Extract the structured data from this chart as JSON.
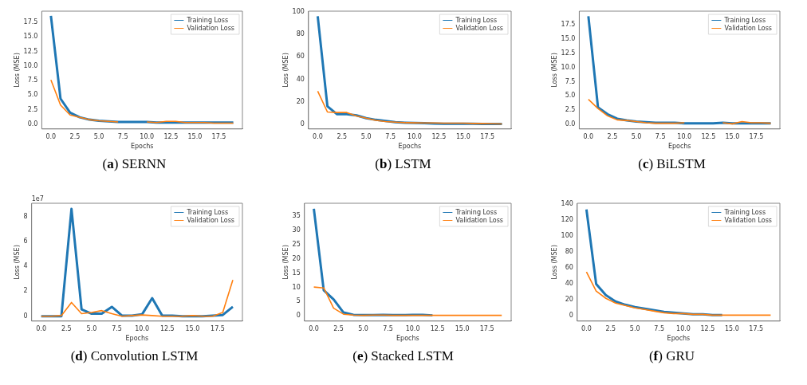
{
  "chart_data": [
    {
      "type": "line",
      "title": "(a) SERNN",
      "xlabel": "Epochs",
      "ylabel": "Loss (MSE)",
      "x": [
        0,
        1,
        2,
        3,
        4,
        5,
        6,
        7,
        8,
        9,
        10,
        11,
        12,
        13,
        14,
        15,
        16,
        17,
        18,
        19
      ],
      "xlim": [
        -0.95,
        19.95
      ],
      "xticks": [
        {
          "value": 0,
          "label": "0.0"
        },
        {
          "value": 2.5,
          "label": "2.5"
        },
        {
          "value": 5,
          "label": "5.0"
        },
        {
          "value": 7.5,
          "label": "7.5"
        },
        {
          "value": 10,
          "label": "10.0"
        },
        {
          "value": 12.5,
          "label": "12.5"
        },
        {
          "value": 15,
          "label": "15.0"
        },
        {
          "value": 17.5,
          "label": "17.5"
        }
      ],
      "ylim": [
        -0.8,
        19.4
      ],
      "yticks": [
        {
          "value": 0,
          "label": "0.0"
        },
        {
          "value": 2.5,
          "label": "2.5"
        },
        {
          "value": 5,
          "label": "5.0"
        },
        {
          "value": 7.5,
          "label": "7.5"
        },
        {
          "value": 10,
          "label": "10.0"
        },
        {
          "value": 12.5,
          "label": "12.5"
        },
        {
          "value": 15,
          "label": "15.0"
        },
        {
          "value": 17.5,
          "label": "17.5"
        }
      ],
      "legend": "top right",
      "grid": false,
      "marker": "none",
      "line_style": "solid",
      "series": [
        {
          "name": "Training Loss",
          "color": "#1f77b4",
          "values": [
            18.6,
            4.4,
            2.0,
            1.2,
            0.8,
            0.6,
            0.5,
            0.4,
            0.4,
            0.4,
            0.4,
            0.3,
            0.3,
            0.3,
            0.3,
            0.3,
            0.3,
            0.3,
            0.3,
            0.3
          ]
        },
        {
          "name": "Validation Loss",
          "color": "#ff7f0e",
          "values": [
            7.6,
            3.3,
            1.6,
            1.2,
            0.8,
            0.6,
            0.5,
            0.4,
            null,
            null,
            0.4,
            0.3,
            0.5,
            0.5,
            0.3,
            0.3,
            0.3,
            0.2,
            0.2,
            0.2
          ]
        }
      ]
    },
    {
      "type": "line",
      "title": "(b) LSTM",
      "xlabel": "Epochs",
      "ylabel": "Loss (MSE)",
      "x": [
        0,
        1,
        2,
        3,
        4,
        5,
        6,
        7,
        8,
        9,
        10,
        11,
        12,
        13,
        14,
        15,
        16,
        17,
        18,
        19
      ],
      "xlim": [
        -0.95,
        19.95
      ],
      "xticks": [
        {
          "value": 0,
          "label": "0.0"
        },
        {
          "value": 2.5,
          "label": "2.5"
        },
        {
          "value": 5,
          "label": "5.0"
        },
        {
          "value": 7.5,
          "label": "7.5"
        },
        {
          "value": 10,
          "label": "10.0"
        },
        {
          "value": 12.5,
          "label": "12.5"
        },
        {
          "value": 15,
          "label": "15.0"
        },
        {
          "value": 17.5,
          "label": "17.5"
        }
      ],
      "ylim": [
        -4.1,
        100.5
      ],
      "yticks": [
        0,
        20,
        40,
        60,
        80,
        100
      ],
      "legend": "top right",
      "grid": false,
      "marker": "none",
      "line_style": "solid",
      "series": [
        {
          "name": "Training Loss",
          "color": "#1f77b4",
          "values": [
            96,
            16,
            9,
            9,
            8,
            5.5,
            4,
            3,
            2,
            1.5,
            1.2,
            1,
            0.8,
            0.6,
            0.6,
            0.6,
            0.5,
            0.4,
            0.4,
            0.4
          ]
        },
        {
          "name": "Validation Loss",
          "color": "#ff7f0e",
          "values": [
            29.5,
            11,
            10.5,
            10.5,
            7.5,
            5.5,
            3.5,
            2.5,
            2,
            1.5,
            1.3,
            1.2,
            1.2,
            1.1,
            1.1,
            1.1,
            0.8,
            0.6,
            0.5,
            0.4
          ]
        }
      ]
    },
    {
      "type": "line",
      "title": "(c) BiLSTM",
      "xlabel": "Epochs",
      "ylabel": "Loss (MSE)",
      "x": [
        0,
        1,
        2,
        3,
        4,
        5,
        6,
        7,
        8,
        9,
        10,
        11,
        12,
        13,
        14,
        15,
        16,
        17,
        18,
        19
      ],
      "xlim": [
        -0.95,
        19.95
      ],
      "xticks": [
        {
          "value": 0,
          "label": "0.0"
        },
        {
          "value": 2.5,
          "label": "2.5"
        },
        {
          "value": 5,
          "label": "5.0"
        },
        {
          "value": 7.5,
          "label": "7.5"
        },
        {
          "value": 10,
          "label": "10.0"
        },
        {
          "value": 12.5,
          "label": "12.5"
        },
        {
          "value": 15,
          "label": "15.0"
        },
        {
          "value": 17.5,
          "label": "17.5"
        }
      ],
      "ylim": [
        -0.8,
        19.9
      ],
      "yticks": [
        {
          "value": 0,
          "label": "0.0"
        },
        {
          "value": 2.5,
          "label": "2.5"
        },
        {
          "value": 5,
          "label": "5.0"
        },
        {
          "value": 7.5,
          "label": "7.5"
        },
        {
          "value": 10,
          "label": "10.0"
        },
        {
          "value": 12.5,
          "label": "12.5"
        },
        {
          "value": 15,
          "label": "15.0"
        },
        {
          "value": 17.5,
          "label": "17.5"
        }
      ],
      "legend": "top right",
      "grid": false,
      "marker": "none",
      "line_style": "solid",
      "series": [
        {
          "name": "Training Loss",
          "color": "#1f77b4",
          "values": [
            19.0,
            3.0,
            1.8,
            1.0,
            0.7,
            0.5,
            0.4,
            0.3,
            0.3,
            0.3,
            0.2,
            0.2,
            0.2,
            0.2,
            0.3,
            0.2,
            0.2,
            0.2,
            0.2,
            0.2
          ]
        },
        {
          "name": "Validation Loss",
          "color": "#ff7f0e",
          "values": [
            4.4,
            2.8,
            1.5,
            0.8,
            0.7,
            0.5,
            0.3,
            0.2,
            0.2,
            0.2,
            0.3,
            null,
            null,
            null,
            0.3,
            0.1,
            0.5,
            0.3,
            0.3,
            0.2
          ]
        }
      ]
    },
    {
      "type": "line",
      "title": "(d) Convolution LSTM",
      "xlabel": "Epochs",
      "ylabel": "Loss (MSE)",
      "annotations": [
        "1e7"
      ],
      "x": [
        0,
        1,
        2,
        3,
        4,
        5,
        6,
        7,
        8,
        9,
        10,
        11,
        12,
        13,
        14,
        15,
        16,
        17,
        18,
        19
      ],
      "xlim": [
        -0.95,
        19.95
      ],
      "xticks": [
        {
          "value": 0,
          "label": "0.0"
        },
        {
          "value": 2.5,
          "label": "2.5"
        },
        {
          "value": 5,
          "label": "5.0"
        },
        {
          "value": 7.5,
          "label": "7.5"
        },
        {
          "value": 10,
          "label": "10.0"
        },
        {
          "value": 12.5,
          "label": "12.5"
        },
        {
          "value": 15,
          "label": "15.0"
        },
        {
          "value": 17.5,
          "label": "17.5"
        }
      ],
      "ylim": [
        -0.39,
        9.05
      ],
      "yticks": [
        0,
        2,
        4,
        6,
        8
      ],
      "legend": "top right",
      "grid": false,
      "marker": "none",
      "line_style": "solid",
      "series": [
        {
          "name": "Training Loss",
          "color": "#1f77b4",
          "values": [
            0,
            0,
            0,
            8.6,
            0.55,
            0.2,
            0.2,
            0.75,
            0.05,
            0.05,
            0.15,
            1.45,
            0.05,
            0.05,
            0,
            0,
            0,
            0.05,
            0.1,
            0.75
          ]
        },
        {
          "name": "Validation Loss",
          "color": "#ff7f0e",
          "values": [
            0,
            0,
            0.05,
            1.1,
            0.2,
            0.3,
            0.45,
            0.2,
            0,
            0.05,
            0.1,
            0.05,
            0,
            0,
            0,
            0.05,
            0,
            0,
            0.3,
            2.9
          ]
        }
      ]
    },
    {
      "type": "line",
      "title": "(e) Stacked LSTM",
      "xlabel": "Epochs",
      "ylabel": "Loss (MSE)",
      "x": [
        0,
        1,
        2,
        3,
        4,
        5,
        6,
        7,
        8,
        9,
        10,
        11,
        12,
        13,
        14,
        15,
        16,
        17,
        18,
        19
      ],
      "xlim": [
        -0.95,
        19.95
      ],
      "xticks": [
        {
          "value": 0,
          "label": "0.0"
        },
        {
          "value": 2.5,
          "label": "2.5"
        },
        {
          "value": 5,
          "label": "5.0"
        },
        {
          "value": 7.5,
          "label": "7.5"
        },
        {
          "value": 10,
          "label": "10.0"
        },
        {
          "value": 12.5,
          "label": "12.5"
        },
        {
          "value": 15,
          "label": "15.0"
        },
        {
          "value": 17.5,
          "label": "17.5"
        }
      ],
      "ylim": [
        -1.8,
        39.4
      ],
      "yticks": [
        0,
        5,
        10,
        15,
        20,
        25,
        30,
        35
      ],
      "legend": "top right",
      "grid": false,
      "marker": "none",
      "line_style": "solid",
      "series": [
        {
          "name": "Training Loss",
          "color": "#1f77b4",
          "values": [
            37.5,
            9,
            5.8,
            1.2,
            0.4,
            0.3,
            0.3,
            0.4,
            0.3,
            0.3,
            0.4,
            0.4,
            0.2,
            null,
            null,
            null,
            null,
            null,
            null,
            null
          ]
        },
        {
          "name": "Validation Loss",
          "color": "#ff7f0e",
          "values": [
            10.1,
            9.8,
            2.7,
            0.6,
            0.3,
            0.2,
            0.3,
            0.3,
            0.2,
            0.2,
            0.2,
            0.2,
            0.2,
            0.2,
            0.2,
            0.2,
            0.2,
            0.2,
            0.2,
            0.2
          ]
        }
      ]
    },
    {
      "type": "line",
      "title": "(f) GRU",
      "xlabel": "Epochs",
      "ylabel": "Loss (MSE)",
      "x": [
        0,
        1,
        2,
        3,
        4,
        5,
        6,
        7,
        8,
        9,
        10,
        11,
        12,
        13,
        14,
        15,
        16,
        17,
        18,
        19
      ],
      "xlim": [
        -0.95,
        19.95
      ],
      "xticks": [
        {
          "value": 0,
          "label": "0.0"
        },
        {
          "value": 2.5,
          "label": "2.5"
        },
        {
          "value": 5,
          "label": "5.0"
        },
        {
          "value": 7.5,
          "label": "7.5"
        },
        {
          "value": 10,
          "label": "10.0"
        },
        {
          "value": 12.5,
          "label": "12.5"
        },
        {
          "value": 15,
          "label": "15.0"
        },
        {
          "value": 17.5,
          "label": "17.5"
        }
      ],
      "ylim": [
        -6.4,
        140.7
      ],
      "yticks": [
        0,
        20,
        40,
        60,
        80,
        100,
        120,
        140
      ],
      "legend": "top right",
      "grid": false,
      "marker": "none",
      "line_style": "solid",
      "series": [
        {
          "name": "Training Loss",
          "color": "#1f77b4",
          "values": [
            133,
            40,
            26,
            18,
            14,
            11,
            9,
            7,
            5,
            4,
            3,
            2,
            2,
            1,
            1,
            null,
            null,
            null,
            null,
            null
          ]
        },
        {
          "name": "Validation Loss",
          "color": "#ff7f0e",
          "values": [
            55,
            31,
            22,
            16,
            13,
            10,
            8,
            6,
            4,
            3,
            3,
            2,
            2,
            1,
            1,
            1,
            1,
            1,
            1,
            1
          ]
        }
      ]
    }
  ]
}
